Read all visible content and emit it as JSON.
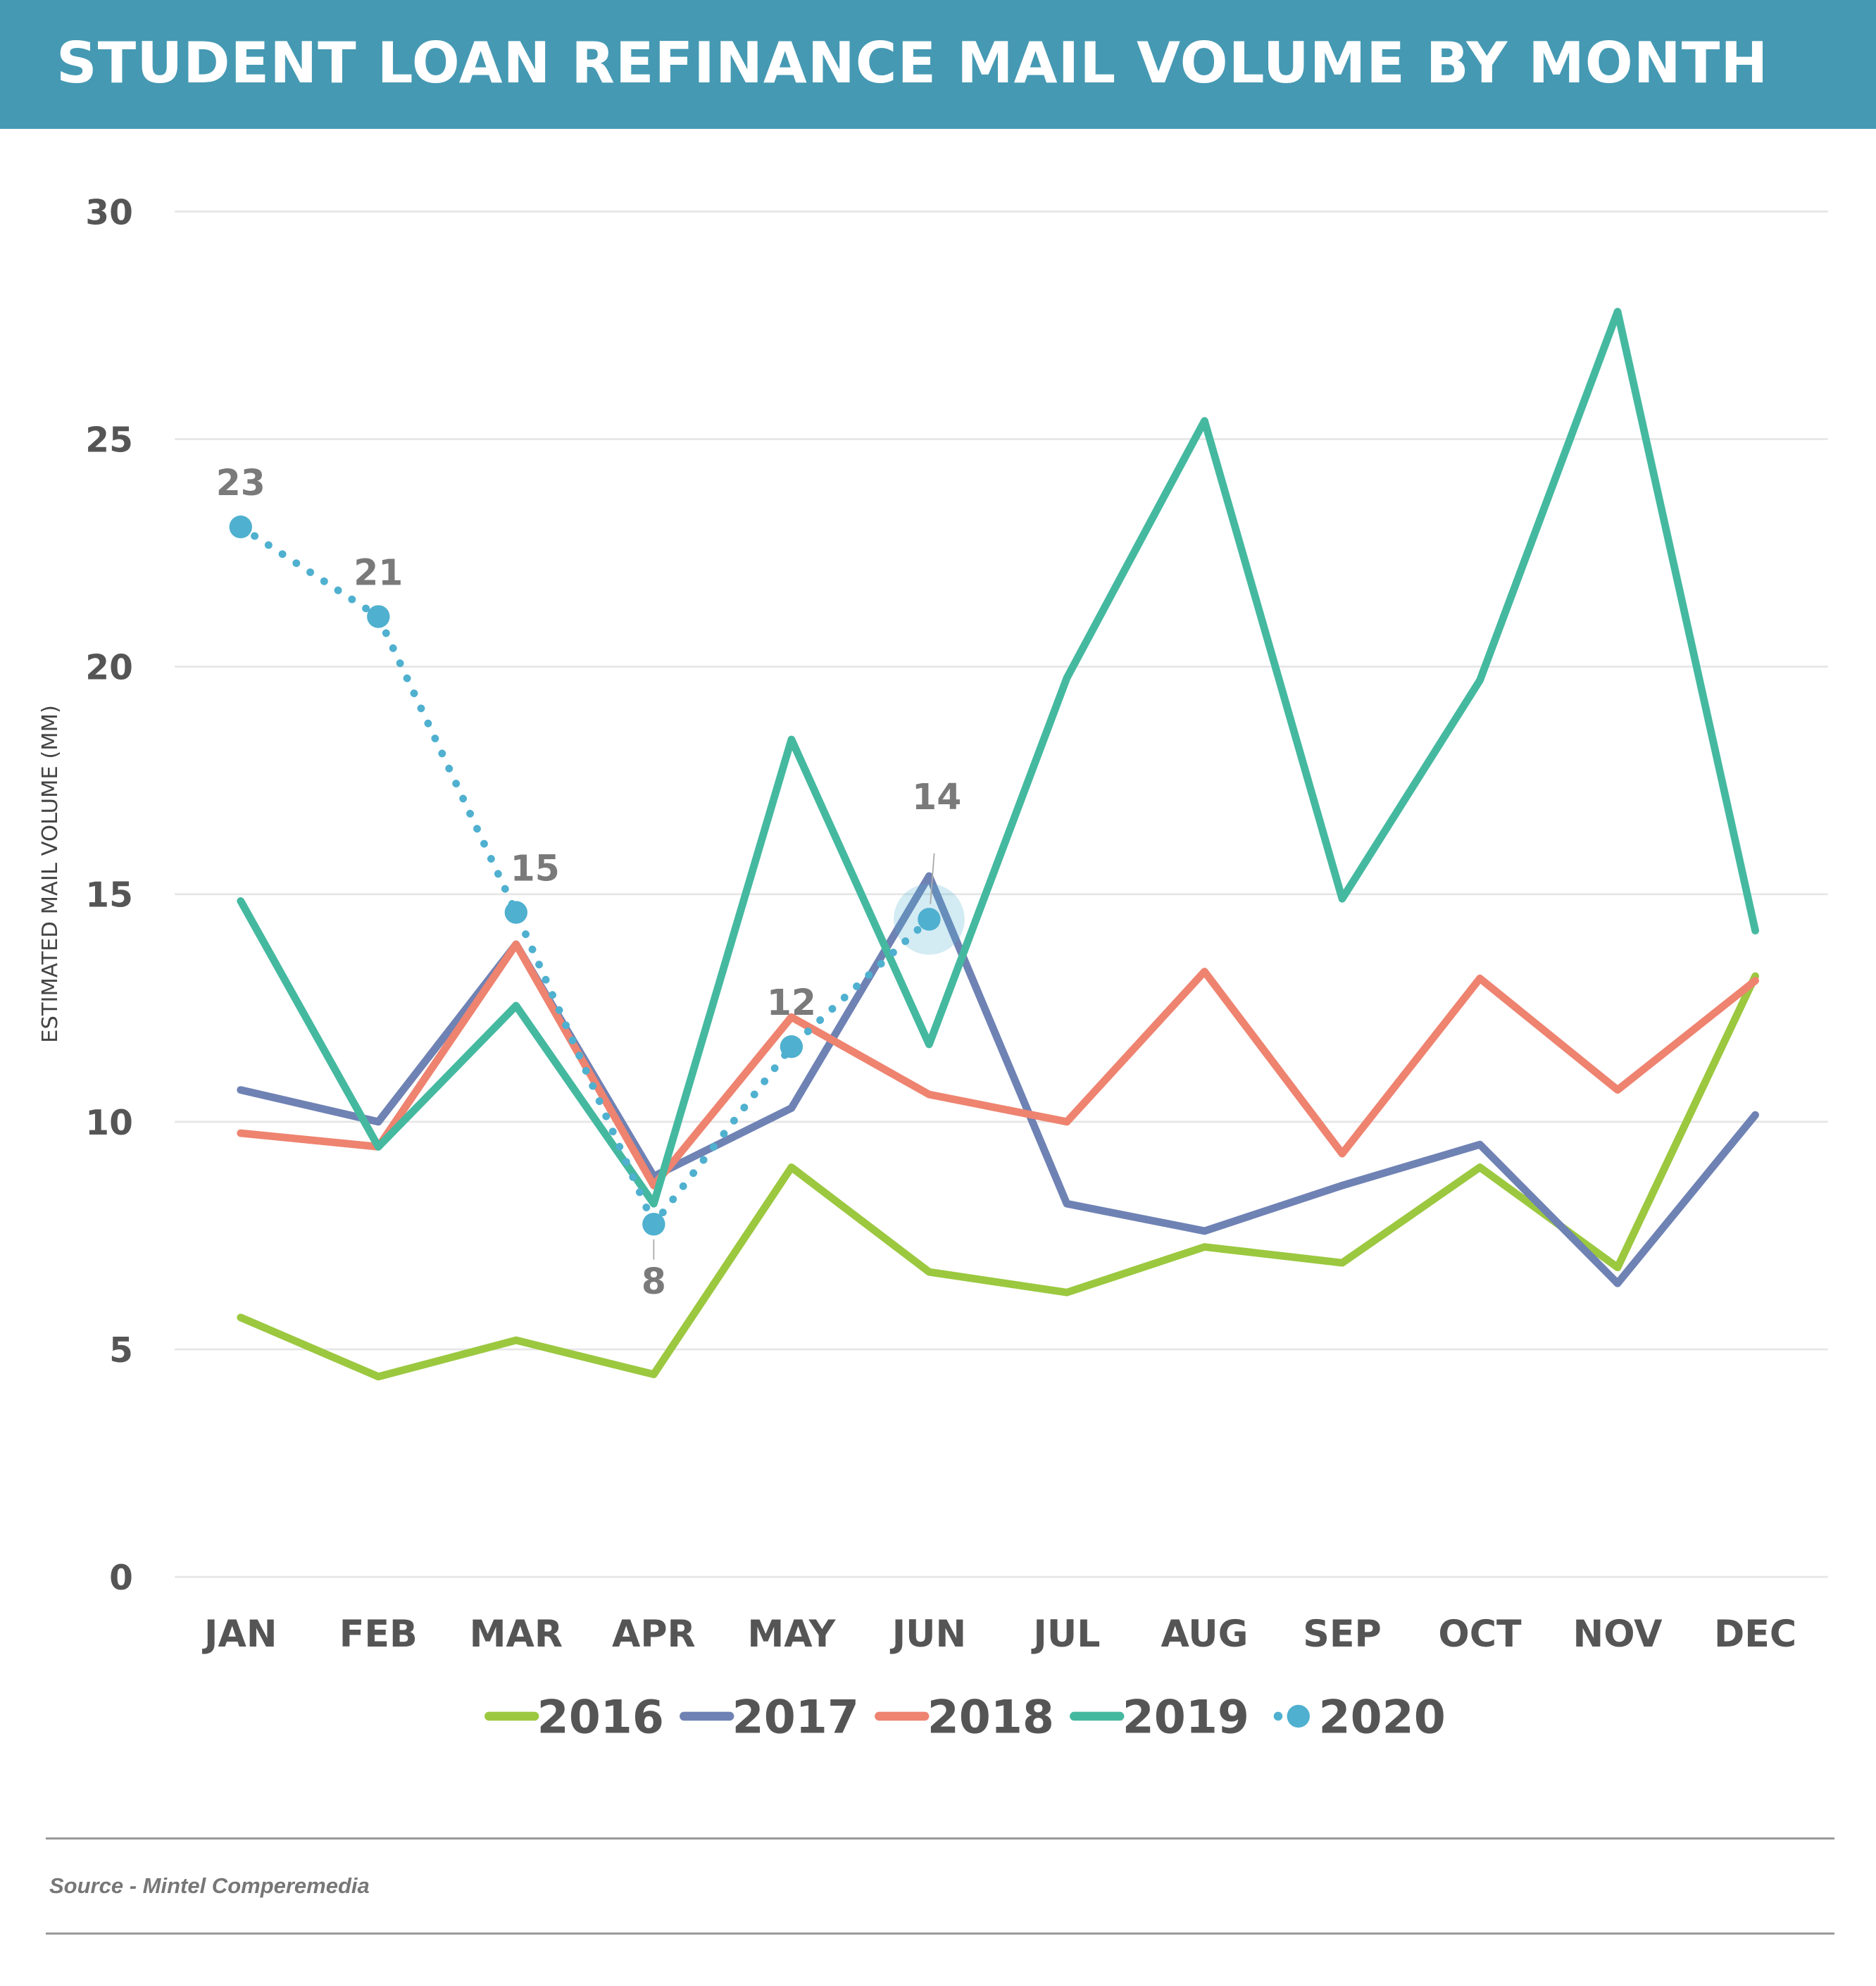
{
  "header": {
    "title": "STUDENT LOAN REFINANCE MAIL VOLUME BY MONTH"
  },
  "footer": {
    "source": "Source - Mintel Comperemedia"
  },
  "colors": {
    "header_bg": "#4599b3",
    "2016": "#9bc83f",
    "2017": "#6f82b4",
    "2018": "#ee8370",
    "2019": "#45b9a0",
    "2020": "#4fb0cf",
    "grid": "#e6e6e6"
  },
  "chart_data": {
    "type": "line",
    "title": "STUDENT LOAN REFINANCE MAIL VOLUME BY MONTH",
    "xlabel": "",
    "ylabel": "ESTIMATED MAIL VOLUME (MM)",
    "ylim": [
      0,
      30
    ],
    "yticks": [
      0,
      5,
      10,
      15,
      20,
      25,
      30
    ],
    "grid": true,
    "legend_position": "bottom",
    "categories": [
      "JAN",
      "FEB",
      "MAR",
      "APR",
      "MAY",
      "JUN",
      "JUL",
      "AUG",
      "SEP",
      "OCT",
      "NOV",
      "DEC"
    ],
    "series": [
      {
        "name": "2016",
        "style": "solid",
        "values": [
          5.7,
          4.4,
          5.2,
          4.45,
          9.0,
          6.7,
          6.25,
          7.25,
          6.9,
          9.0,
          6.8,
          13.2
        ]
      },
      {
        "name": "2017",
        "style": "solid",
        "values": [
          10.7,
          10.0,
          13.9,
          8.8,
          10.3,
          15.4,
          8.2,
          7.6,
          8.6,
          9.5,
          6.45,
          10.15
        ]
      },
      {
        "name": "2018",
        "style": "solid",
        "values": [
          9.75,
          9.45,
          13.9,
          8.6,
          12.3,
          10.6,
          10.0,
          13.3,
          9.3,
          13.15,
          10.7,
          13.1
        ]
      },
      {
        "name": "2019",
        "style": "solid",
        "values": [
          14.85,
          9.45,
          12.55,
          8.2,
          18.4,
          11.7,
          19.75,
          25.4,
          14.9,
          19.7,
          27.8,
          14.2
        ]
      },
      {
        "name": "2020",
        "style": "dotted-markers",
        "values": [
          23.07,
          21.1,
          14.6,
          7.75,
          11.65,
          14.45
        ],
        "data_labels": [
          "23",
          "21",
          "15",
          "8",
          "12",
          "14"
        ],
        "highlighted_point": "JUN"
      }
    ]
  }
}
